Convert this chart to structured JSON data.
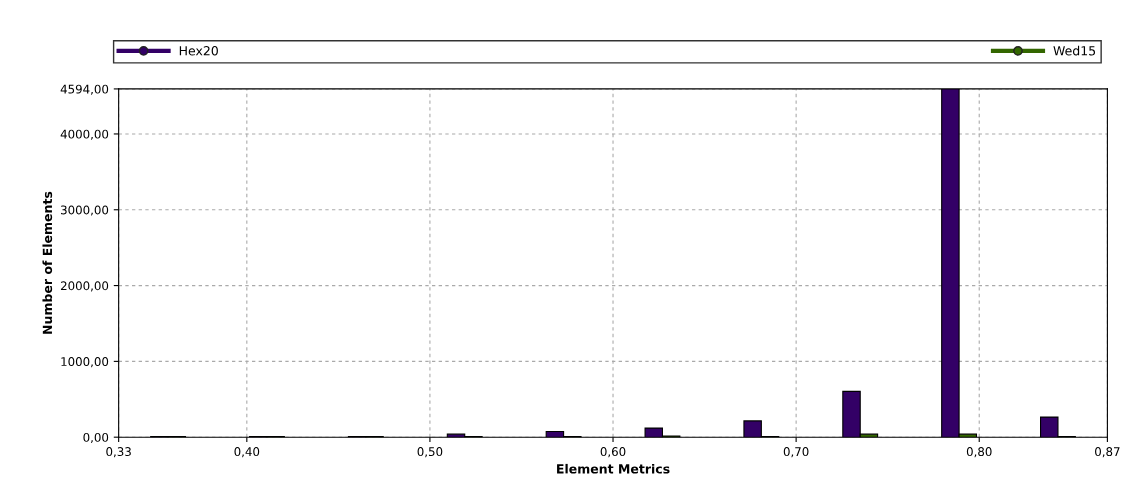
{
  "chart_data": {
    "type": "bar",
    "xlabel": "Element Metrics",
    "ylabel": "Number of Elements",
    "x": [
      0.357,
      0.411,
      0.465,
      0.519,
      0.573,
      0.627,
      0.681,
      0.735,
      0.789,
      0.843
    ],
    "series": [
      {
        "name": "Hex20",
        "color": "#330066",
        "values": [
          10,
          10,
          10,
          40,
          75,
          120,
          215,
          605,
          4594,
          265
        ]
      },
      {
        "name": "Wed15",
        "color": "#336600",
        "values": [
          10,
          10,
          10,
          10,
          10,
          15,
          10,
          40,
          40,
          10
        ]
      }
    ],
    "xlim": [
      0.33,
      0.87
    ],
    "xticks": [
      {
        "value": 0.33,
        "label": "0,33"
      },
      {
        "value": 0.4,
        "label": "0,40"
      },
      {
        "value": 0.5,
        "label": "0,50"
      },
      {
        "value": 0.6,
        "label": "0,60"
      },
      {
        "value": 0.7,
        "label": "0,70"
      },
      {
        "value": 0.8,
        "label": "0,80"
      },
      {
        "value": 0.87,
        "label": "0,87"
      }
    ],
    "ylim": [
      0,
      4594
    ],
    "yticks": [
      {
        "value": 0,
        "label": "0,00"
      },
      {
        "value": 1000,
        "label": "1000,00"
      },
      {
        "value": 2000,
        "label": "2000,00"
      },
      {
        "value": 3000,
        "label": "3000,00"
      },
      {
        "value": 4000,
        "label": "4000,00"
      },
      {
        "value": 4594,
        "label": "4594,00"
      }
    ],
    "grid": true,
    "legend": "top",
    "marker": "circle"
  }
}
